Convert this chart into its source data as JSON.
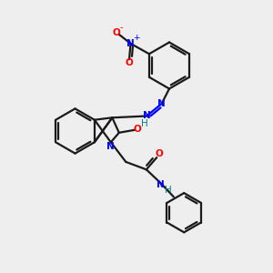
{
  "bg_color": "#eeeeee",
  "bond_color": "#1a1a1a",
  "nitrogen_color": "#0000ff",
  "oxygen_color": "#ff0000",
  "h_color": "#008080",
  "line_width": 1.6,
  "figsize": [
    3.0,
    3.0
  ],
  "dpi": 100,
  "xlim": [
    0,
    10
  ],
  "ylim": [
    0,
    10
  ]
}
